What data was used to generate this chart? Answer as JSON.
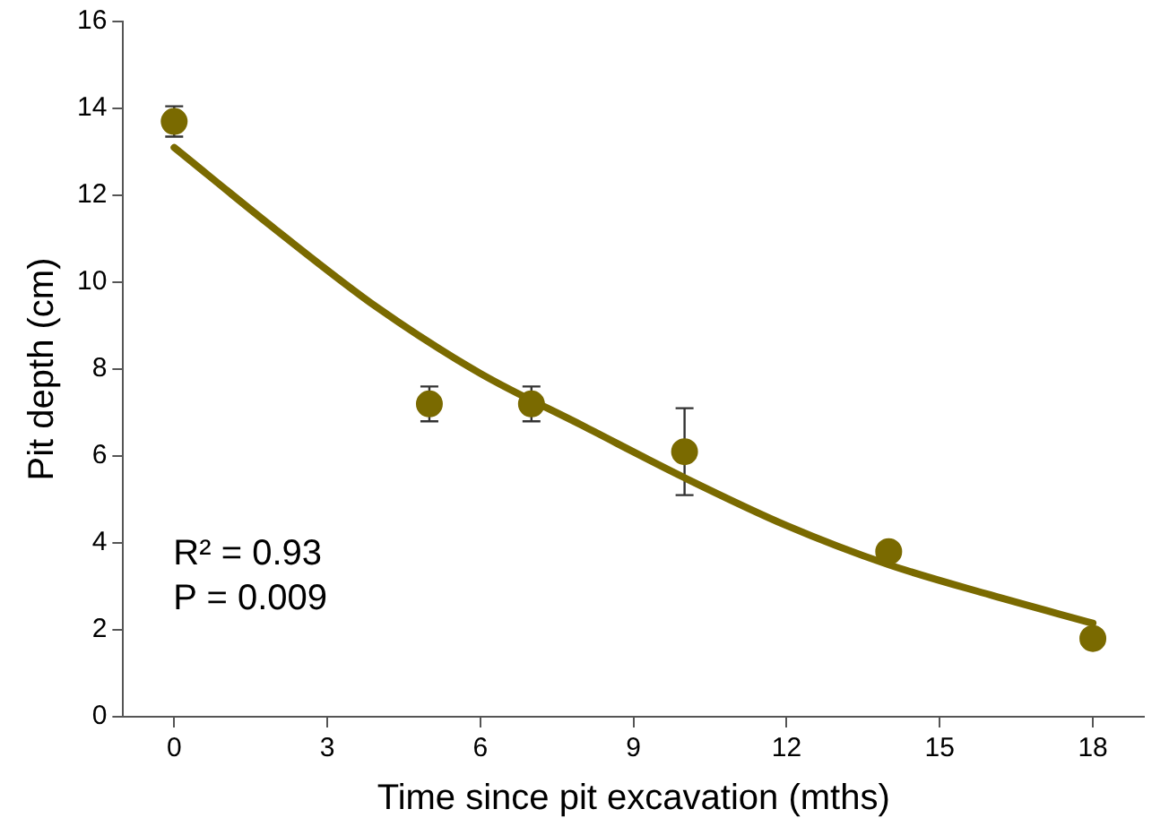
{
  "chart_data": {
    "type": "scatter",
    "xlabel": "Time since pit excavation (mths)",
    "ylabel": "Pit depth (cm)",
    "xlim": [
      -1,
      19
    ],
    "xticks": [
      0,
      3,
      6,
      9,
      12,
      15,
      18
    ],
    "ylim": [
      0,
      16
    ],
    "yticks": [
      0,
      2,
      4,
      6,
      8,
      10,
      12,
      14,
      16
    ],
    "grid": false,
    "legend": false,
    "marker": "circle",
    "series": [
      {
        "color": "#7a6a00",
        "x": [
          0,
          5,
          7,
          10,
          14,
          18
        ],
        "values": [
          13.7,
          7.2,
          7.2,
          6.1,
          3.8,
          1.8
        ],
        "errors": [
          0.35,
          0.4,
          0.4,
          1.0,
          null,
          null
        ]
      },
      {
        "type": "line",
        "color": "#7a6a00",
        "marker": "none",
        "line_style": "solid",
        "x": [
          0,
          2,
          4,
          6,
          8,
          10,
          12,
          14,
          16,
          18
        ],
        "values": [
          13.1,
          11.2,
          9.4,
          7.9,
          6.7,
          5.5,
          4.4,
          3.5,
          2.8,
          2.15
        ]
      }
    ],
    "annotations": [
      "R² = 0.93",
      "P = 0.009"
    ]
  }
}
